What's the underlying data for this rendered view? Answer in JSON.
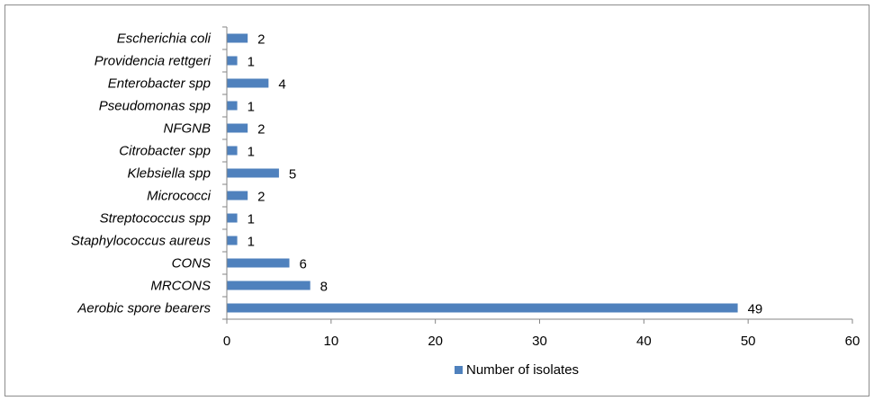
{
  "chart_data": {
    "type": "bar",
    "orientation": "horizontal",
    "categories": [
      "Escherichia coli",
      "Providencia rettgeri",
      "Enterobacter spp",
      "Pseudomonas spp",
      "NFGNB",
      "Citrobacter spp",
      "Klebsiella spp",
      "Micrococci",
      "Streptococcus spp",
      "Staphylococcus aureus",
      "CONS",
      "MRCONS",
      "Aerobic spore bearers"
    ],
    "series": [
      {
        "name": "Number of isolates",
        "values": [
          2,
          1,
          4,
          1,
          2,
          1,
          5,
          2,
          1,
          1,
          6,
          8,
          49
        ],
        "color": "#4f81bd"
      }
    ],
    "xlim": [
      0,
      60
    ],
    "x_ticks": [
      "0",
      "10",
      "20",
      "30",
      "40",
      "50",
      "60"
    ],
    "data_labels": true,
    "grid": false,
    "legend_position": "bottom"
  }
}
